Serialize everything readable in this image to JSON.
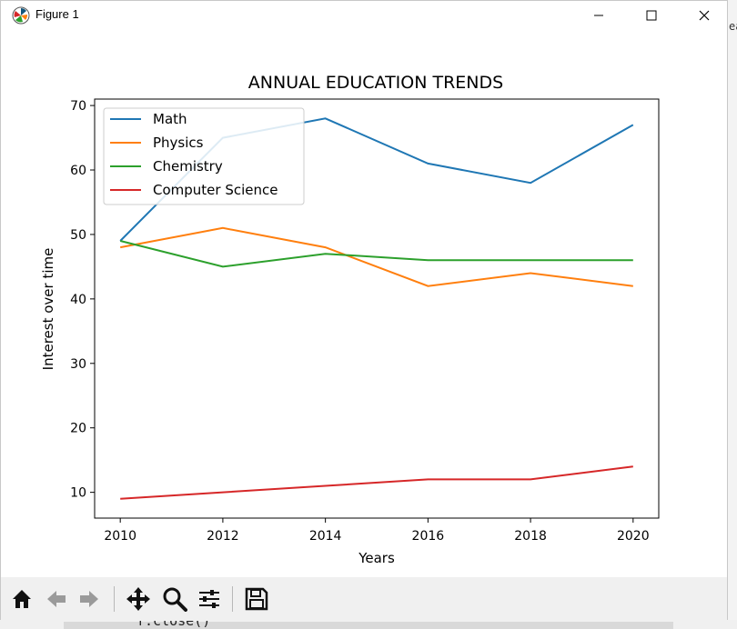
{
  "window": {
    "title": "Figure 1"
  },
  "background": {
    "code_text": "f.close()",
    "edge_text": "ea"
  },
  "toolbar": {
    "buttons": [
      {
        "name": "home-icon"
      },
      {
        "name": "back-icon"
      },
      {
        "name": "forward-icon"
      },
      {
        "name": "pan-icon"
      },
      {
        "name": "zoom-icon"
      },
      {
        "name": "configure-subplots-icon"
      },
      {
        "name": "save-icon"
      }
    ]
  },
  "chart_data": {
    "type": "line",
    "title": "ANNUAL EDUCATION TRENDS",
    "xlabel": "Years",
    "ylabel": "Interest over time",
    "x": [
      2010,
      2012,
      2014,
      2016,
      2018,
      2020
    ],
    "xticks": [
      2010,
      2012,
      2014,
      2016,
      2018,
      2020
    ],
    "yticks": [
      10,
      20,
      30,
      40,
      50,
      60,
      70
    ],
    "xlim": [
      2009.5,
      2020.5
    ],
    "ylim": [
      6.0,
      71.0
    ],
    "grid": false,
    "legend_position": "top-left",
    "series": [
      {
        "name": "Math",
        "color": "#1f77b4",
        "values": [
          49,
          65,
          68,
          61,
          58,
          67
        ]
      },
      {
        "name": "Physics",
        "color": "#ff7f0e",
        "values": [
          48,
          51,
          48,
          42,
          44,
          42
        ]
      },
      {
        "name": "Chemistry",
        "color": "#2ca02c",
        "values": [
          49,
          45,
          47,
          46,
          46,
          46
        ]
      },
      {
        "name": "Computer Science",
        "color": "#d62728",
        "values": [
          9,
          10,
          11,
          12,
          12,
          14
        ]
      }
    ]
  }
}
